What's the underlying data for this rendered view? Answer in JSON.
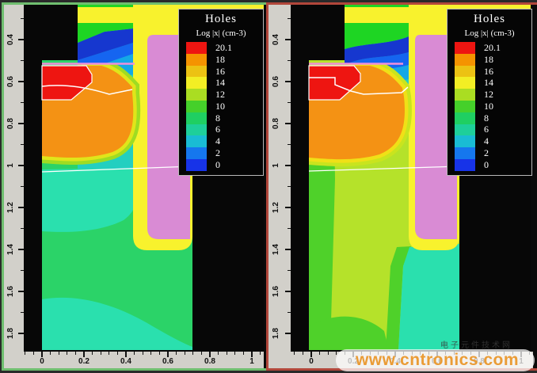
{
  "palette": {
    "black": "#070707",
    "yellow": "#f8f22d",
    "magenta": "#d98bd4",
    "red": "#ee1511",
    "orange": "#f49214",
    "pink": "#f08fd8",
    "white": "#ffffff",
    "green_band": "#1ed523",
    "dark_blue": "#1637cf",
    "blue": "#1565f0",
    "cyan": "#14a8e6",
    "teal_band": "#23cfc0",
    "bulk_teal": "#2ae0ae",
    "bulk_green_left": "#2bd368",
    "fringe_outer_left": "#9fdc22",
    "fringe_inner_left": "#e0e51a",
    "bulk_yellowgreen": "#b5e22a",
    "green_right": "#4fd12a",
    "fringe_outer_right": "#c9e41e",
    "fringe_inner_right": "#f0e017"
  },
  "panels": [
    {
      "name": "left",
      "border_color": "#6fbe6f"
    },
    {
      "name": "right",
      "border_color": "#b2473b"
    }
  ],
  "legend": {
    "title": "Holes",
    "subtitle": "Log |x| (cm-3)",
    "ticks": [
      "20.1",
      "18",
      "16",
      "14",
      "12",
      "10",
      "8",
      "6",
      "4",
      "2",
      "0"
    ],
    "colors": [
      "#ee1511",
      "#f59300",
      "#ecc213",
      "#f2ee24",
      "#aadd22",
      "#45d02a",
      "#1fcf62",
      "#1ecf9a",
      "#19bcd4",
      "#1577ee",
      "#1733e8"
    ]
  },
  "axes": {
    "x_ticks": [
      {
        "label": "0",
        "value": 0
      },
      {
        "label": "0.2",
        "value": 0.2
      },
      {
        "label": "0.4",
        "value": 0.4
      },
      {
        "label": "0.6",
        "value": 0.6
      },
      {
        "label": "0.8",
        "value": 0.8
      },
      {
        "label": "1",
        "value": 1
      }
    ],
    "y_ticks": [
      {
        "label": "0.4",
        "value": 0.4
      },
      {
        "label": "0.6",
        "value": 0.6
      },
      {
        "label": "0.8",
        "value": 0.8
      },
      {
        "label": "1",
        "value": 1
      },
      {
        "label": "1.2",
        "value": 1.2
      },
      {
        "label": "1.4",
        "value": 1.4
      },
      {
        "label": "1.6",
        "value": 1.6
      },
      {
        "label": "1.8",
        "value": 1.8
      }
    ]
  },
  "watermark": {
    "text": "www.cntronics.com",
    "cjk_text": "电子元件技术网",
    "color": "#ea9c36"
  },
  "chart_data": [
    {
      "type": "heatmap",
      "panel": "left",
      "title": "Holes",
      "scale_label": "Log |x| (cm-3)",
      "colorbar_ticks": [
        20.1,
        18,
        16,
        14,
        12,
        10,
        8,
        6,
        4,
        2,
        0
      ],
      "x_ticks": [
        0,
        0.2,
        0.4,
        0.6,
        0.8,
        1
      ],
      "y_ticks": [
        0.4,
        0.6,
        0.8,
        1,
        1.2,
        1.4,
        1.6,
        1.8
      ],
      "legend_position": "top-right",
      "regions": [
        {
          "name": "p+ source contact (red block)",
          "approx_level": 20.1
        },
        {
          "name": "body region (orange blob)",
          "approx_level": "16-18"
        },
        {
          "name": "body edge fringe (yellow-green rings)",
          "approx_level": "12-14"
        },
        {
          "name": "channel / depletion bands under gate (green-blue-cyan stripes)",
          "approx_level": "0-8"
        },
        {
          "name": "upper drift region (teal)",
          "approx_level": "8-10"
        },
        {
          "name": "bulk drift (green)",
          "approx_level": "10-12"
        },
        {
          "name": "bottom substrate band (teal, wavy boundary)",
          "approx_level": "8-10"
        },
        {
          "name": "trench gate poly (magenta) with oxide liner (yellow)",
          "approx_level": "masked"
        },
        {
          "name": "top oxide (yellow strip)",
          "approx_level": "masked"
        }
      ]
    },
    {
      "type": "heatmap",
      "panel": "right",
      "title": "Holes",
      "scale_label": "Log |x| (cm-3)",
      "colorbar_ticks": [
        20.1,
        18,
        16,
        14,
        12,
        10,
        8,
        6,
        4,
        2,
        0
      ],
      "x_ticks": [
        0,
        0.2,
        0.4,
        0.6,
        0.8,
        1
      ],
      "y_ticks": [
        0.4,
        0.6,
        0.8,
        1,
        1.2,
        1.4,
        1.6,
        1.8
      ],
      "legend_position": "top-right",
      "regions": [
        {
          "name": "p+ source contact (red block)",
          "approx_level": 20.1
        },
        {
          "name": "body region (orange blob)",
          "approx_level": "16-18"
        },
        {
          "name": "wide inversion layer under gate (flat green band)",
          "approx_level": "10-12"
        },
        {
          "name": "depletion bands (dark blue / blue / cyan stripes)",
          "approx_level": "0-8"
        },
        {
          "name": "bulk drift (yellow-green, higher hole density than left panel)",
          "approx_level": "12-14"
        },
        {
          "name": "left edge and bottom bulk (green)",
          "approx_level": "10-12"
        },
        {
          "name": "region right of trench bottom (teal)",
          "approx_level": "8-10"
        },
        {
          "name": "trench gate poly (magenta) with oxide liner (yellow)",
          "approx_level": "masked"
        }
      ]
    }
  ]
}
